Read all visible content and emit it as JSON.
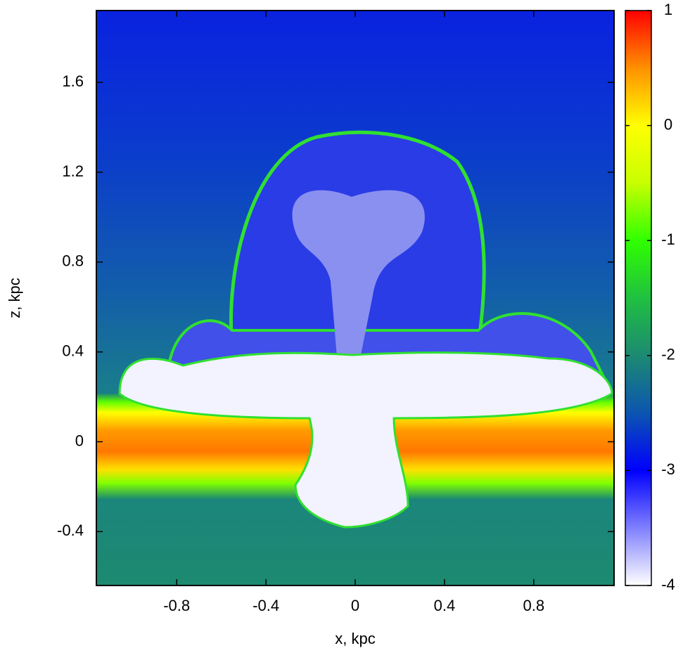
{
  "chart_data": {
    "type": "heatmap",
    "xlabel": "x, kpc",
    "ylabel": "z, kpc",
    "xlim": [
      -1.16,
      1.16
    ],
    "xticks": [
      -0.8,
      -0.4,
      0,
      0.4,
      0.8
    ],
    "ylim": [
      -0.64,
      1.92
    ],
    "yticks": [
      -0.4,
      0,
      0.4,
      0.8,
      1.2,
      1.6
    ],
    "clim": [
      -4,
      1
    ],
    "cticks": [
      -4,
      -3,
      -2,
      -1,
      0,
      1
    ],
    "colormap": [
      {
        "value": -4,
        "color": "#ffffff"
      },
      {
        "value": -3,
        "color": "#0000ff"
      },
      {
        "value": -2.5,
        "color": "#0c55b0"
      },
      {
        "value": -2,
        "color": "#1c8a72"
      },
      {
        "value": -1.5,
        "color": "#20c040"
      },
      {
        "value": -1,
        "color": "#30ff00"
      },
      {
        "value": -0.5,
        "color": "#c8ff00"
      },
      {
        "value": 0,
        "color": "#ffff00"
      },
      {
        "value": 0.5,
        "color": "#ff9000"
      },
      {
        "value": 1,
        "color": "#ff0000"
      }
    ]
  }
}
